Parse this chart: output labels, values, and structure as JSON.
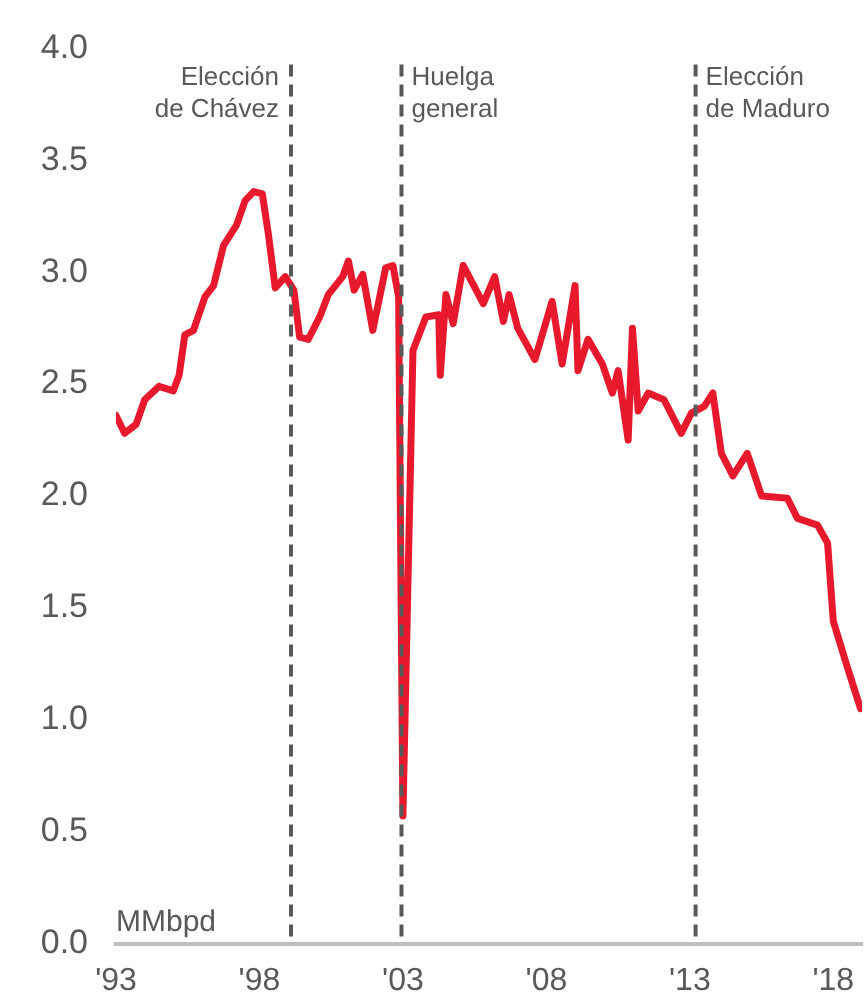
{
  "chart_data": {
    "type": "line",
    "ylabel": "MMbpd",
    "x": [
      1993.0,
      1993.3,
      1993.7,
      1994.0,
      1994.5,
      1995.0,
      1995.2,
      1995.4,
      1995.7,
      1996.1,
      1996.4,
      1996.75,
      1997.2,
      1997.5,
      1997.8,
      1998.1,
      1998.3,
      1998.55,
      1998.9,
      1999.2,
      1999.4,
      1999.7,
      2000.1,
      2000.4,
      2000.9,
      2001.1,
      2001.3,
      2001.6,
      2001.95,
      2002.4,
      2002.65,
      2002.85,
      2003.0,
      2003.35,
      2003.8,
      2004.25,
      2004.3,
      2004.5,
      2004.75,
      2005.1,
      2005.8,
      2006.2,
      2006.5,
      2006.7,
      2007.0,
      2007.6,
      2007.9,
      2008.2,
      2008.55,
      2009.0,
      2009.1,
      2009.45,
      2009.95,
      2010.3,
      2010.5,
      2010.85,
      2011.0,
      2011.2,
      2011.55,
      2012.1,
      2012.7,
      2013.05,
      2013.5,
      2013.8,
      2014.1,
      2014.5,
      2015.0,
      2015.5,
      2016.4,
      2016.75,
      2017.45,
      2017.8,
      2018.0,
      2018.5,
      2018.95
    ],
    "series": [
      {
        "color": "#e8192c",
        "values": [
          2.36,
          2.28,
          2.32,
          2.43,
          2.49,
          2.47,
          2.54,
          2.72,
          2.74,
          2.89,
          2.94,
          3.12,
          3.21,
          3.32,
          3.36,
          3.35,
          3.18,
          2.93,
          2.98,
          2.92,
          2.71,
          2.7,
          2.8,
          2.9,
          2.98,
          3.05,
          2.92,
          2.99,
          2.74,
          3.02,
          3.03,
          2.89,
          0.57,
          2.65,
          2.8,
          2.81,
          2.54,
          2.9,
          2.77,
          3.03,
          2.86,
          2.98,
          2.78,
          2.9,
          2.75,
          2.61,
          2.74,
          2.87,
          2.59,
          2.94,
          2.56,
          2.7,
          2.59,
          2.46,
          2.56,
          2.25,
          2.75,
          2.38,
          2.46,
          2.43,
          2.28,
          2.37,
          2.4,
          2.46,
          2.19,
          2.09,
          2.19,
          2.0,
          1.99,
          1.9,
          1.87,
          1.79,
          1.44,
          1.23,
          1.05
        ]
      }
    ],
    "xlim": [
      1993,
      2019
    ],
    "xticks": [
      {
        "value": 1993,
        "label": "'93"
      },
      {
        "value": 1998,
        "label": "'98"
      },
      {
        "value": 2003,
        "label": "'03"
      },
      {
        "value": 2008,
        "label": "'08"
      },
      {
        "value": 2013,
        "label": "'13"
      },
      {
        "value": 2018,
        "label": "'18"
      }
    ],
    "ylim": [
      0,
      4
    ],
    "yticks": [
      {
        "value": 0,
        "label": "0.0"
      },
      {
        "value": 0.5,
        "label": "0.5"
      },
      {
        "value": 1,
        "label": "1.0"
      },
      {
        "value": 1.5,
        "label": "1.5"
      },
      {
        "value": 2,
        "label": "2.0"
      },
      {
        "value": 2.5,
        "label": "2.5"
      },
      {
        "value": 3,
        "label": "3.0"
      },
      {
        "value": 3.5,
        "label": "3.5"
      },
      {
        "value": 4,
        "label": "4.0"
      }
    ],
    "grid": false,
    "legend": false,
    "marker": "none",
    "line_style": "solid",
    "ref_lines": [
      {
        "axis": "x",
        "value": 1999.1,
        "label": "Elección\nde Chávez",
        "color": "#595959",
        "line_style": "dashed"
      },
      {
        "axis": "x",
        "value": 2002.95,
        "label": "Huelga\ngeneral",
        "color": "#595959",
        "line_style": "dashed"
      },
      {
        "axis": "x",
        "value": 2013.2,
        "label": "Elección\nde Maduro",
        "color": "#595959",
        "line_style": "dashed"
      }
    ]
  }
}
